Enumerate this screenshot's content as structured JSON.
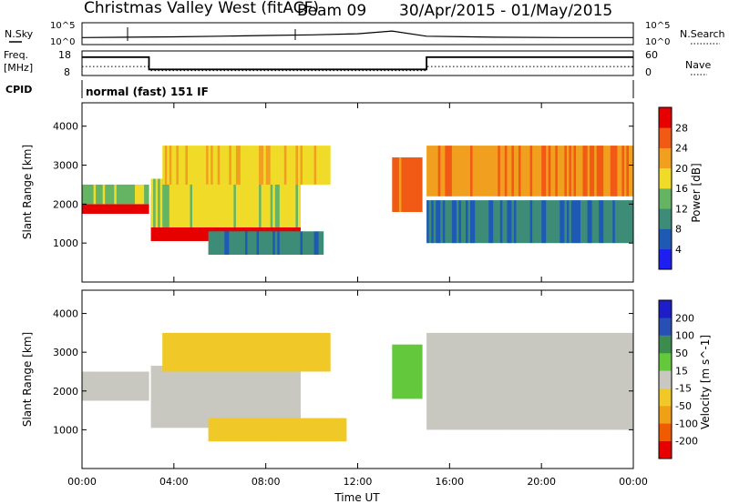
{
  "header": {
    "title": "Christmas Valley West (fitACF)",
    "beam_label": "Beam 09",
    "date_range": "30/Apr/2015 - 01/May/2015"
  },
  "strip_labels": {
    "nsky": "N.Sky",
    "nsearch": "N.Search",
    "freq_line1": "Freq.",
    "freq_line2": "[MHz]",
    "nave": "Nave",
    "cpid": "CPID",
    "cpid_value": "normal (fast) 151 IF",
    "noise_ticks": [
      "10^5",
      "10^0"
    ],
    "freq_ticks": [
      "18",
      "8"
    ],
    "nave_ticks": [
      "60",
      "0"
    ]
  },
  "colors": {
    "power_scale": [
      "#1e1ef0",
      "#1e5ab4",
      "#3c8c78",
      "#64b464",
      "#f0dc28",
      "#f0a01e",
      "#f05a14",
      "#e60000"
    ],
    "velocity_scale": [
      "#e60000",
      "#f05a00",
      "#f0a014",
      "#f0c828",
      "#c8c8c0",
      "#64c83c",
      "#3c8c50",
      "#2850b4",
      "#1e1ec8"
    ]
  },
  "chart_data": [
    {
      "type": "line",
      "name": "noise-strip",
      "series": [
        {
          "name": "N.Sky",
          "x": [
            "00:00",
            "02:00",
            "04:00",
            "06:00",
            "08:00",
            "10:00",
            "12:00",
            "13:30",
            "15:00",
            "18:00",
            "21:00",
            "24:00"
          ],
          "values": [
            1.5,
            1.6,
            1.7,
            1.9,
            2.1,
            2.3,
            2.6,
            3.4,
            1.9,
            1.6,
            1.5,
            1.5
          ]
        }
      ],
      "yticks": [
        "10^5",
        "10^0"
      ]
    },
    {
      "type": "line",
      "name": "frequency-nave-strip",
      "series": [
        {
          "name": "Freq.",
          "x": [
            "00:00",
            "02:55",
            "02:55",
            "15:00",
            "15:00",
            "24:00"
          ],
          "values": [
            15.5,
            15.5,
            10.5,
            10.5,
            15.5,
            15.5
          ]
        },
        {
          "name": "Nave",
          "x": [
            "00:00",
            "02:55",
            "02:55",
            "15:00",
            "15:00",
            "24:00"
          ],
          "values": [
            22,
            22,
            12,
            12,
            22,
            22
          ]
        }
      ],
      "ylim_freq": [
        8,
        18
      ],
      "ylim_nave": [
        0,
        60
      ]
    },
    {
      "type": "heatmap",
      "name": "power-panel",
      "xlabel": "",
      "ylabel": "Slant Range [km]",
      "xlim": [
        "00:00",
        "24:00"
      ],
      "ylim": [
        0,
        4600
      ],
      "yticks": [
        1000,
        2000,
        3000,
        4000
      ],
      "colorbar": {
        "label": "Power [dB]",
        "ticks": [
          4,
          8,
          12,
          16,
          20,
          24,
          28
        ],
        "range": [
          0,
          30
        ]
      },
      "bands": [
        {
          "t0": 0.0,
          "t1": 2.9,
          "r0": 1750,
          "r1": 2000,
          "value": 30
        },
        {
          "t0": 0.0,
          "t1": 2.9,
          "r0": 2000,
          "r1": 2500,
          "value": 14
        },
        {
          "t0": 3.0,
          "t1": 9.5,
          "r0": 1050,
          "r1": 2250,
          "value": 30
        },
        {
          "t0": 3.0,
          "t1": 9.5,
          "r0": 1400,
          "r1": 2650,
          "value": 16
        },
        {
          "t0": 3.5,
          "t1": 10.8,
          "r0": 2500,
          "r1": 3500,
          "value": 18
        },
        {
          "t0": 5.5,
          "t1": 10.5,
          "r0": 700,
          "r1": 1300,
          "value": 9
        },
        {
          "t0": 13.5,
          "t1": 14.8,
          "r0": 1800,
          "r1": 3200,
          "value": 24
        },
        {
          "t0": 15.0,
          "t1": 24.0,
          "r0": 2200,
          "r1": 3500,
          "value": 22
        },
        {
          "t0": 15.0,
          "t1": 24.0,
          "r0": 1000,
          "r1": 2100,
          "value": 8
        }
      ]
    },
    {
      "type": "heatmap",
      "name": "velocity-panel",
      "xlabel": "Time UT",
      "ylabel": "Slant Range [km]",
      "xticks": [
        "00:00",
        "04:00",
        "08:00",
        "12:00",
        "16:00",
        "20:00",
        "00:00"
      ],
      "xlim": [
        "00:00",
        "24:00"
      ],
      "ylim": [
        0,
        4600
      ],
      "yticks": [
        1000,
        2000,
        3000,
        4000
      ],
      "colorbar": {
        "label": "Velocity [m s^-1]",
        "ticks": [
          200,
          100,
          50,
          15,
          -15,
          -50,
          -100,
          -200
        ],
        "range": [
          -250,
          250
        ]
      },
      "bands": [
        {
          "t0": 0.0,
          "t1": 2.9,
          "r0": 1750,
          "r1": 2500,
          "value": 0
        },
        {
          "t0": 3.0,
          "t1": 9.5,
          "r0": 1050,
          "r1": 2650,
          "value": 0
        },
        {
          "t0": 3.5,
          "t1": 10.8,
          "r0": 2500,
          "r1": 3500,
          "value": -40
        },
        {
          "t0": 5.5,
          "t1": 11.5,
          "r0": 700,
          "r1": 1300,
          "value": -40
        },
        {
          "t0": 13.5,
          "t1": 14.8,
          "r0": 1800,
          "r1": 3200,
          "value": 40
        },
        {
          "t0": 15.0,
          "t1": 24.0,
          "r0": 1000,
          "r1": 3500,
          "value": 0
        }
      ]
    }
  ]
}
